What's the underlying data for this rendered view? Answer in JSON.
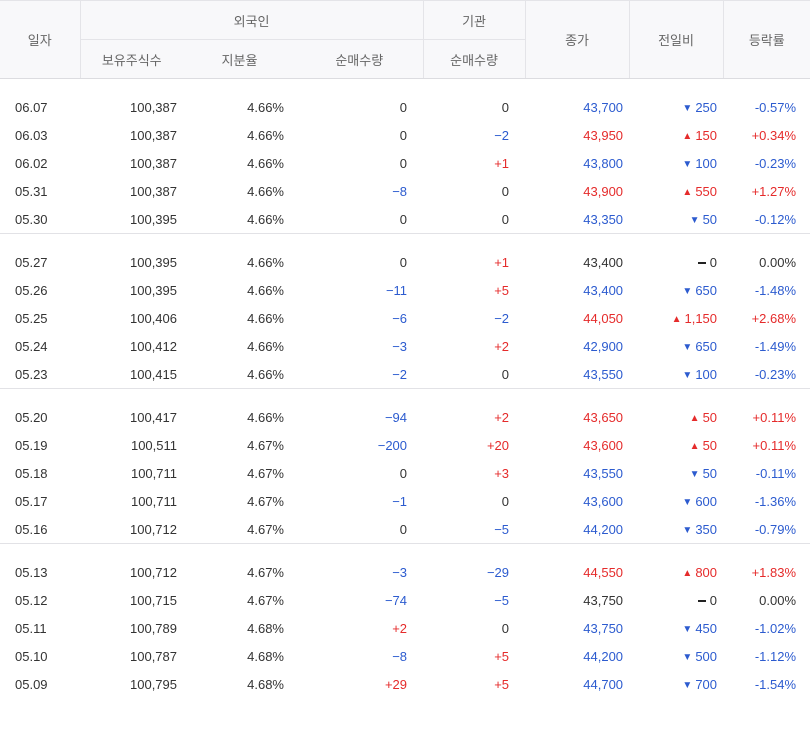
{
  "header": {
    "date": "일자",
    "foreign": "외국인",
    "institution": "기관",
    "close": "종가",
    "change": "전일비",
    "rate": "등락률",
    "holdings": "보유주식수",
    "ratio": "지분율",
    "foreign_net": "순매수량",
    "inst_net": "순매수량"
  },
  "groups": [
    [
      {
        "date": "06.07",
        "hold": "100,387",
        "ratio": "4.66%",
        "fnet": "0",
        "inet": "0",
        "close": "43,700",
        "chg": "250",
        "rate": "-0.57%",
        "dir": "down",
        "fdir": "flat",
        "idir": "flat"
      },
      {
        "date": "06.03",
        "hold": "100,387",
        "ratio": "4.66%",
        "fnet": "0",
        "inet": "−2",
        "close": "43,950",
        "chg": "150",
        "rate": "+0.34%",
        "dir": "up",
        "fdir": "flat",
        "idir": "down"
      },
      {
        "date": "06.02",
        "hold": "100,387",
        "ratio": "4.66%",
        "fnet": "0",
        "inet": "+1",
        "close": "43,800",
        "chg": "100",
        "rate": "-0.23%",
        "dir": "down",
        "fdir": "flat",
        "idir": "up"
      },
      {
        "date": "05.31",
        "hold": "100,387",
        "ratio": "4.66%",
        "fnet": "−8",
        "inet": "0",
        "close": "43,900",
        "chg": "550",
        "rate": "+1.27%",
        "dir": "up",
        "fdir": "down",
        "idir": "flat"
      },
      {
        "date": "05.30",
        "hold": "100,395",
        "ratio": "4.66%",
        "fnet": "0",
        "inet": "0",
        "close": "43,350",
        "chg": "50",
        "rate": "-0.12%",
        "dir": "down",
        "fdir": "flat",
        "idir": "flat"
      }
    ],
    [
      {
        "date": "05.27",
        "hold": "100,395",
        "ratio": "4.66%",
        "fnet": "0",
        "inet": "+1",
        "close": "43,400",
        "chg": "0",
        "rate": "0.00%",
        "dir": "flat",
        "fdir": "flat",
        "idir": "up"
      },
      {
        "date": "05.26",
        "hold": "100,395",
        "ratio": "4.66%",
        "fnet": "−11",
        "inet": "+5",
        "close": "43,400",
        "chg": "650",
        "rate": "-1.48%",
        "dir": "down",
        "fdir": "down",
        "idir": "up"
      },
      {
        "date": "05.25",
        "hold": "100,406",
        "ratio": "4.66%",
        "fnet": "−6",
        "inet": "−2",
        "close": "44,050",
        "chg": "1,150",
        "rate": "+2.68%",
        "dir": "up",
        "fdir": "down",
        "idir": "down"
      },
      {
        "date": "05.24",
        "hold": "100,412",
        "ratio": "4.66%",
        "fnet": "−3",
        "inet": "+2",
        "close": "42,900",
        "chg": "650",
        "rate": "-1.49%",
        "dir": "down",
        "fdir": "down",
        "idir": "up"
      },
      {
        "date": "05.23",
        "hold": "100,415",
        "ratio": "4.66%",
        "fnet": "−2",
        "inet": "0",
        "close": "43,550",
        "chg": "100",
        "rate": "-0.23%",
        "dir": "down",
        "fdir": "down",
        "idir": "flat"
      }
    ],
    [
      {
        "date": "05.20",
        "hold": "100,417",
        "ratio": "4.66%",
        "fnet": "−94",
        "inet": "+2",
        "close": "43,650",
        "chg": "50",
        "rate": "+0.11%",
        "dir": "up",
        "fdir": "down",
        "idir": "up"
      },
      {
        "date": "05.19",
        "hold": "100,511",
        "ratio": "4.67%",
        "fnet": "−200",
        "inet": "+20",
        "close": "43,600",
        "chg": "50",
        "rate": "+0.11%",
        "dir": "up",
        "fdir": "down",
        "idir": "up"
      },
      {
        "date": "05.18",
        "hold": "100,711",
        "ratio": "4.67%",
        "fnet": "0",
        "inet": "+3",
        "close": "43,550",
        "chg": "50",
        "rate": "-0.11%",
        "dir": "down",
        "fdir": "flat",
        "idir": "up"
      },
      {
        "date": "05.17",
        "hold": "100,711",
        "ratio": "4.67%",
        "fnet": "−1",
        "inet": "0",
        "close": "43,600",
        "chg": "600",
        "rate": "-1.36%",
        "dir": "down",
        "fdir": "down",
        "idir": "flat"
      },
      {
        "date": "05.16",
        "hold": "100,712",
        "ratio": "4.67%",
        "fnet": "0",
        "inet": "−5",
        "close": "44,200",
        "chg": "350",
        "rate": "-0.79%",
        "dir": "down",
        "fdir": "flat",
        "idir": "down"
      }
    ],
    [
      {
        "date": "05.13",
        "hold": "100,712",
        "ratio": "4.67%",
        "fnet": "−3",
        "inet": "−29",
        "close": "44,550",
        "chg": "800",
        "rate": "+1.83%",
        "dir": "up",
        "fdir": "down",
        "idir": "down"
      },
      {
        "date": "05.12",
        "hold": "100,715",
        "ratio": "4.67%",
        "fnet": "−74",
        "inet": "−5",
        "close": "43,750",
        "chg": "0",
        "rate": "0.00%",
        "dir": "flat",
        "fdir": "down",
        "idir": "down"
      },
      {
        "date": "05.11",
        "hold": "100,789",
        "ratio": "4.68%",
        "fnet": "+2",
        "inet": "0",
        "close": "43,750",
        "chg": "450",
        "rate": "-1.02%",
        "dir": "down",
        "fdir": "up",
        "idir": "flat"
      },
      {
        "date": "05.10",
        "hold": "100,787",
        "ratio": "4.68%",
        "fnet": "−8",
        "inet": "+5",
        "close": "44,200",
        "chg": "500",
        "rate": "-1.12%",
        "dir": "down",
        "fdir": "down",
        "idir": "up"
      },
      {
        "date": "05.09",
        "hold": "100,795",
        "ratio": "4.68%",
        "fnet": "+29",
        "inet": "+5",
        "close": "44,700",
        "chg": "700",
        "rate": "-1.54%",
        "dir": "down",
        "fdir": "up",
        "idir": "up"
      }
    ]
  ],
  "colors": {
    "up": "#e52b2b",
    "down": "#2c5bcf",
    "flat": "#333333"
  }
}
